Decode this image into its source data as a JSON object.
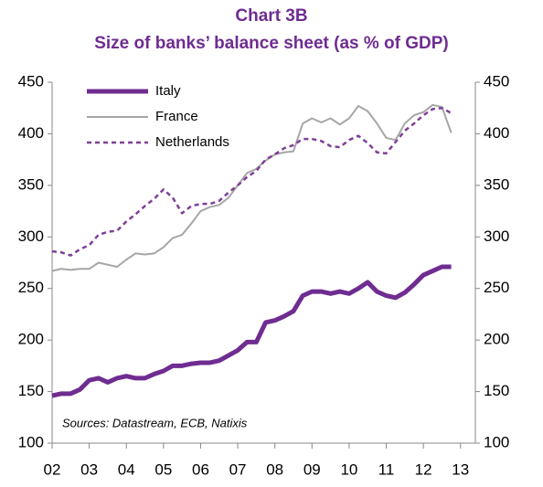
{
  "chart_data": {
    "type": "line",
    "title": "Chart 3B",
    "subtitle": "Size of banks’ balance sheet (as % of GDP)",
    "annotation": "Sources: Datastream, ECB, Natixis",
    "x": [
      2002,
      2002.25,
      2002.5,
      2002.75,
      2003,
      2003.25,
      2003.5,
      2003.75,
      2004,
      2004.25,
      2004.5,
      2004.75,
      2005,
      2005.25,
      2005.5,
      2005.75,
      2006,
      2006.25,
      2006.5,
      2006.75,
      2007,
      2007.25,
      2007.5,
      2007.75,
      2008,
      2008.25,
      2008.5,
      2008.75,
      2009,
      2009.25,
      2009.5,
      2009.75,
      2010,
      2010.25,
      2010.5,
      2010.75,
      2011,
      2011.25,
      2011.5,
      2011.75,
      2012,
      2012.25,
      2012.5,
      2012.75
    ],
    "series": [
      {
        "name": "Italy",
        "color": "#6f2c91",
        "width": 5,
        "style": "solid",
        "values": [
          146,
          148,
          148,
          152,
          161,
          163,
          159,
          163,
          165,
          163,
          163,
          167,
          170,
          175,
          175,
          177,
          178,
          178,
          180,
          185,
          190,
          198,
          198,
          217,
          219,
          223,
          228,
          243,
          247,
          247,
          245,
          247,
          245,
          250,
          256,
          247,
          243,
          241,
          246,
          254,
          263,
          267,
          271,
          271
        ]
      },
      {
        "name": "France",
        "color": "#a6a6a6",
        "width": 2,
        "style": "solid",
        "values": [
          267,
          269,
          268,
          269,
          269,
          275,
          273,
          271,
          278,
          284,
          283,
          284,
          290,
          299,
          302,
          313,
          325,
          329,
          331,
          338,
          350,
          362,
          366,
          374,
          380,
          382,
          383,
          410,
          415,
          411,
          415,
          409,
          415,
          427,
          422,
          410,
          396,
          394,
          410,
          418,
          421,
          428,
          426,
          401
        ]
      },
      {
        "name": "Netherlands",
        "color": "#7f3f98",
        "width": 2.5,
        "style": "dashed",
        "values": [
          286,
          285,
          282,
          288,
          292,
          302,
          305,
          306,
          315,
          322,
          330,
          337,
          346,
          338,
          323,
          330,
          332,
          332,
          335,
          343,
          350,
          358,
          364,
          375,
          380,
          386,
          389,
          395,
          395,
          393,
          388,
          387,
          394,
          398,
          391,
          382,
          381,
          392,
          403,
          410,
          418,
          424,
          425,
          420
        ]
      }
    ],
    "xlim": [
      2002,
      2013.4
    ],
    "xticks": [
      {
        "value": 2002,
        "label": "02"
      },
      {
        "value": 2003,
        "label": "03"
      },
      {
        "value": 2004,
        "label": "04"
      },
      {
        "value": 2005,
        "label": "05"
      },
      {
        "value": 2006,
        "label": "06"
      },
      {
        "value": 2007,
        "label": "07"
      },
      {
        "value": 2008,
        "label": "08"
      },
      {
        "value": 2009,
        "label": "09"
      },
      {
        "value": 2010,
        "label": "10"
      },
      {
        "value": 2011,
        "label": "11"
      },
      {
        "value": 2012,
        "label": "12"
      },
      {
        "value": 2013,
        "label": "13"
      }
    ],
    "ylim": [
      100,
      450
    ],
    "yticks": [
      100,
      150,
      200,
      250,
      300,
      350,
      400,
      450
    ],
    "y2lim": [
      100,
      450
    ],
    "y2ticks": [
      100,
      150,
      200,
      250,
      300,
      350,
      400,
      450
    ],
    "legend": "upper left"
  }
}
